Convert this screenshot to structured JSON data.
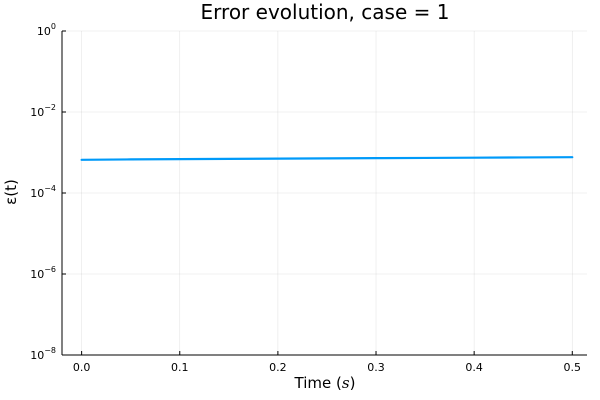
{
  "chart_data": {
    "type": "line",
    "title": "Error evolution, case = 1",
    "xlabel_text": "Time (",
    "xlabel_unit": "s",
    "xlabel_close": ")",
    "ylabel": "ε(t)",
    "xscale": "linear",
    "yscale": "log",
    "xlim": [
      -0.02,
      0.515
    ],
    "ylim": [
      1e-08,
      1
    ],
    "grid": true,
    "legend": "none",
    "x_ticks": [
      {
        "value": 0.0,
        "label": "0.0"
      },
      {
        "value": 0.1,
        "label": "0.1"
      },
      {
        "value": 0.2,
        "label": "0.2"
      },
      {
        "value": 0.3,
        "label": "0.3"
      },
      {
        "value": 0.4,
        "label": "0.4"
      },
      {
        "value": 0.5,
        "label": "0.5"
      }
    ],
    "y_ticks": [
      {
        "value": 1e-08,
        "base": "10",
        "exp": "−8"
      },
      {
        "value": 1e-06,
        "base": "10",
        "exp": "−6"
      },
      {
        "value": 0.0001,
        "base": "10",
        "exp": "−4"
      },
      {
        "value": 0.01,
        "base": "10",
        "exp": "−2"
      },
      {
        "value": 1,
        "base": "10",
        "exp": "0"
      }
    ],
    "series": [
      {
        "color": "#009af9",
        "x": [
          0.0,
          0.05,
          0.1,
          0.15,
          0.2,
          0.25,
          0.3,
          0.35,
          0.4,
          0.45,
          0.5
        ],
        "values": [
          0.00066,
          0.000675,
          0.000685,
          0.000695,
          0.000705,
          0.000715,
          0.000725,
          0.000735,
          0.000745,
          0.000755,
          0.000765
        ]
      }
    ]
  }
}
